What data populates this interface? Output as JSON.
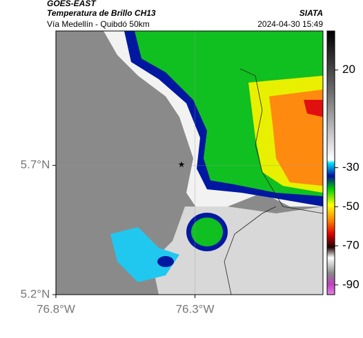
{
  "header": {
    "source": "GOES-EAST",
    "product": "Temperatura de Brillo CH13",
    "region": "Vía Medellín - Quibdó 50km",
    "agency": "SIATA",
    "timestamp": "2024-04-30 15:49"
  },
  "map": {
    "xlim": [
      -76.8,
      -75.84
    ],
    "ylim": [
      5.2,
      6.22
    ],
    "xticks": [
      {
        "value": -76.8,
        "label": "76.8°W"
      },
      {
        "value": -76.3,
        "label": "76.3°W"
      }
    ],
    "yticks": [
      {
        "value": 5.2,
        "label": "5.2°N"
      },
      {
        "value": 5.7,
        "label": "5.7°N"
      }
    ],
    "grid": true
  },
  "colorbar": {
    "clim": [
      -95,
      40
    ],
    "ticks": [
      20,
      -30,
      -50,
      -70,
      -90
    ]
  }
}
